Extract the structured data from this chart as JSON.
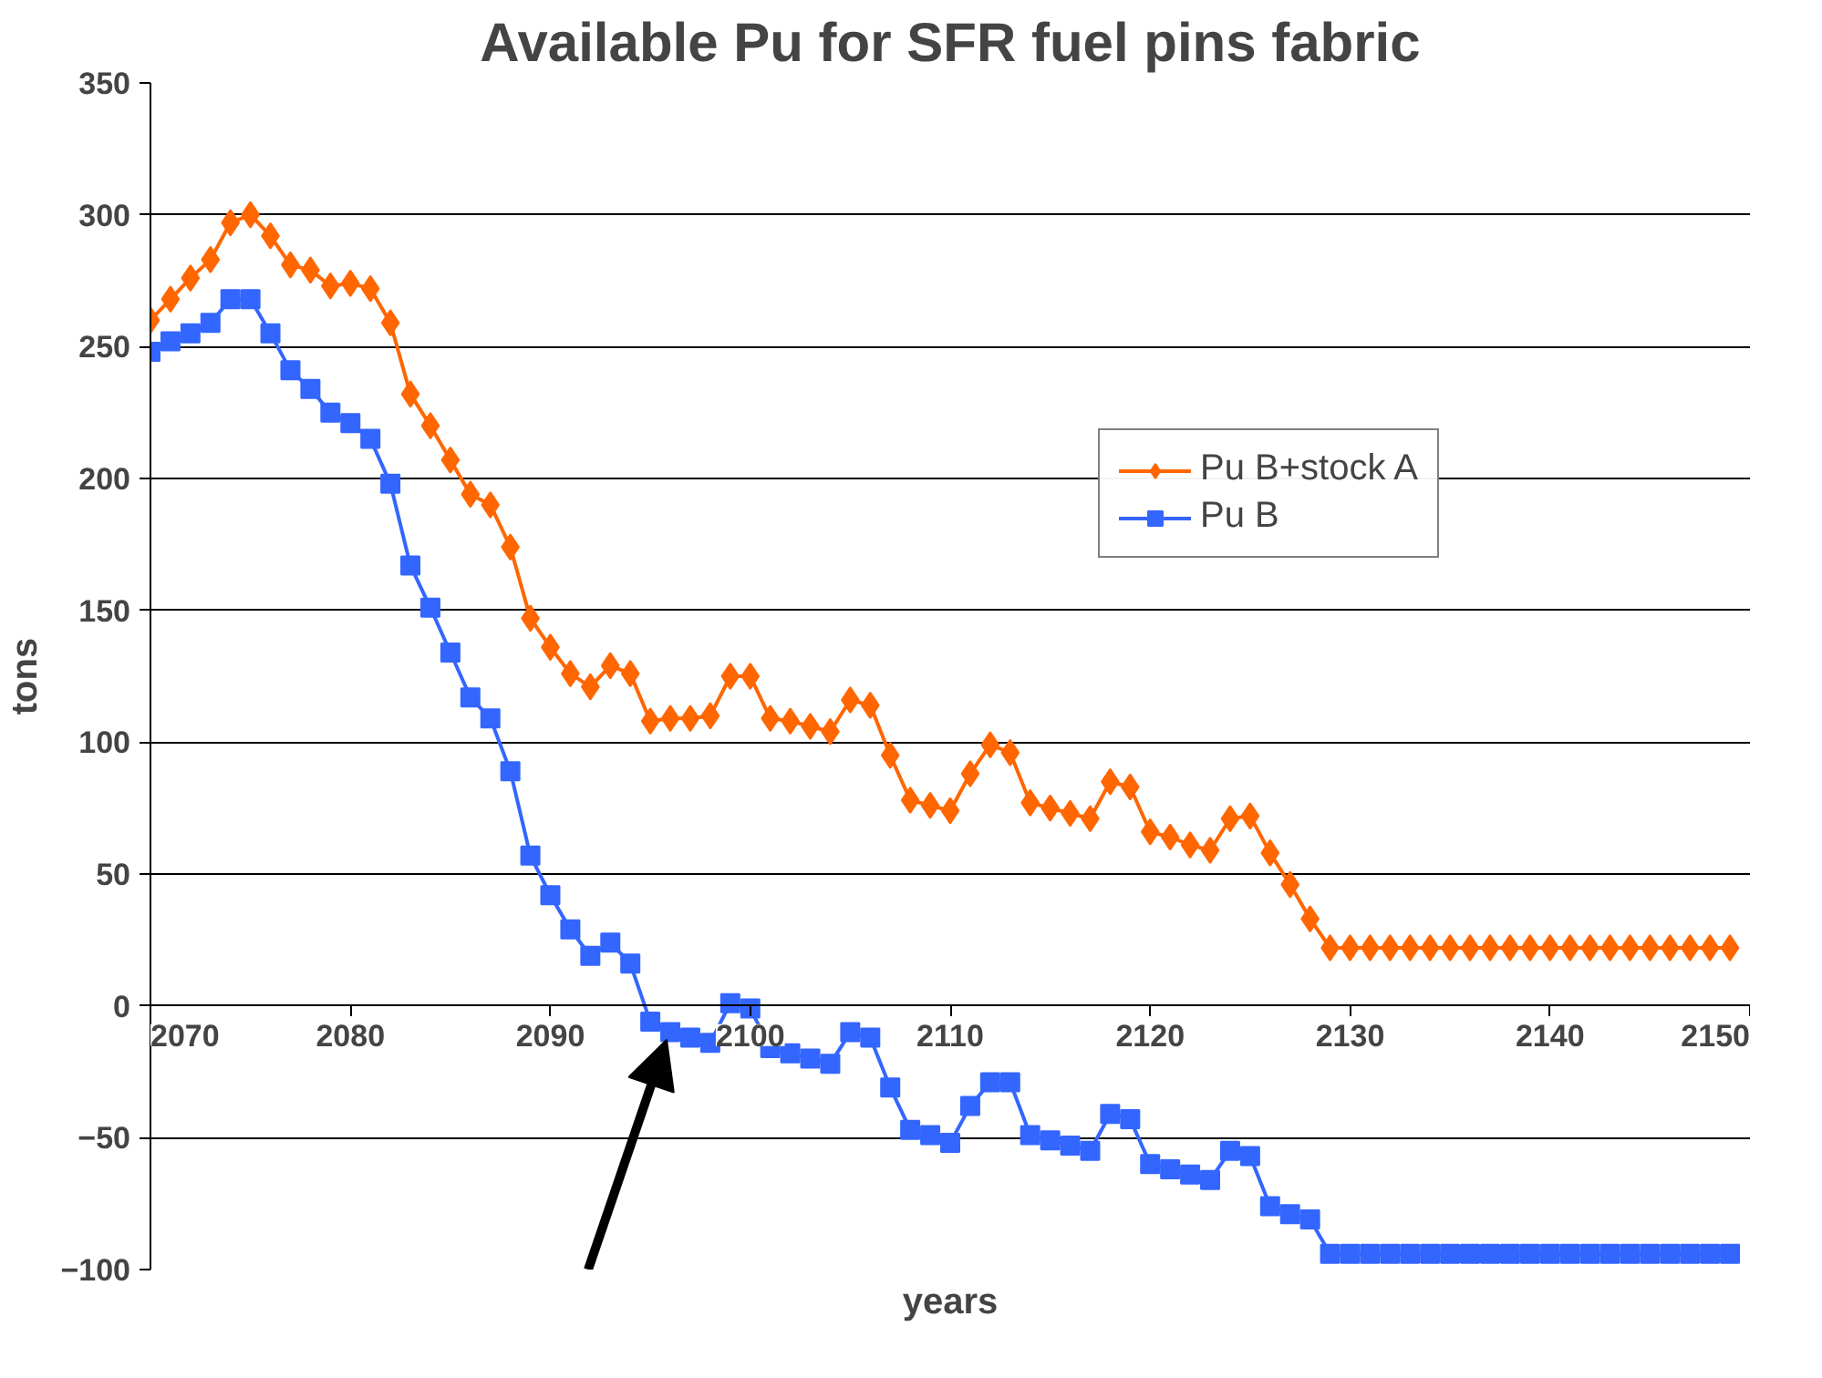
{
  "chart_data": {
    "type": "line",
    "title": "Available Pu for SFR fuel pins fabric",
    "xlabel": "years",
    "ylabel": "tons",
    "x": [
      2070,
      2071,
      2072,
      2073,
      2074,
      2075,
      2076,
      2077,
      2078,
      2079,
      2080,
      2081,
      2082,
      2083,
      2084,
      2085,
      2086,
      2087,
      2088,
      2089,
      2090,
      2091,
      2092,
      2093,
      2094,
      2095,
      2096,
      2097,
      2098,
      2099,
      2100,
      2101,
      2102,
      2103,
      2104,
      2105,
      2106,
      2107,
      2108,
      2109,
      2110,
      2111,
      2112,
      2113,
      2114,
      2115,
      2116,
      2117,
      2118,
      2119,
      2120,
      2121,
      2122,
      2123,
      2124,
      2125,
      2126,
      2127,
      2128,
      2129,
      2130,
      2131,
      2132,
      2133,
      2134,
      2135,
      2136,
      2137,
      2138,
      2139,
      2140,
      2141,
      2142,
      2143,
      2144,
      2145,
      2146,
      2147,
      2148,
      2149
    ],
    "series": [
      {
        "name": "Pu B+stock A",
        "color": "#ff6600",
        "marker": "diamond",
        "values": [
          260,
          268,
          276,
          283,
          297,
          300,
          292,
          281,
          279,
          273,
          274,
          272,
          259,
          232,
          220,
          207,
          194,
          190,
          174,
          147,
          136,
          126,
          121,
          129,
          126,
          108,
          109,
          109,
          110,
          125,
          125,
          109,
          108,
          106,
          104,
          116,
          114,
          95,
          78,
          76,
          74,
          88,
          99,
          96,
          77,
          75,
          73,
          71,
          85,
          83,
          66,
          64,
          61,
          59,
          71,
          72,
          58,
          46,
          33,
          22,
          22,
          22,
          22,
          22,
          22,
          22,
          22,
          22,
          22,
          22,
          22,
          22,
          22,
          22,
          22,
          22,
          22,
          22,
          22,
          22
        ]
      },
      {
        "name": "Pu B",
        "color": "#3366ff",
        "marker": "square",
        "values": [
          248,
          252,
          255,
          259,
          268,
          268,
          255,
          241,
          234,
          225,
          221,
          215,
          198,
          167,
          151,
          134,
          117,
          109,
          89,
          57,
          42,
          29,
          19,
          24,
          16,
          -6,
          -10,
          -12,
          -14,
          1,
          -1,
          -16,
          -18,
          -20,
          -22,
          -10,
          -12,
          -31,
          -47,
          -49,
          -52,
          -38,
          -29,
          -29,
          -49,
          -51,
          -53,
          -55,
          -41,
          -43,
          -60,
          -62,
          -64,
          -66,
          -55,
          -57,
          -76,
          -79,
          -81,
          -94,
          -94,
          -94,
          -94,
          -94,
          -94,
          -94,
          -94,
          -94,
          -94,
          -94,
          -94,
          -94,
          -94,
          -94,
          -94,
          -94,
          -94,
          -94,
          -94,
          -94
        ]
      }
    ],
    "xlim": [
      2070,
      2150
    ],
    "xticks": [
      2070,
      2080,
      2090,
      2100,
      2110,
      2120,
      2130,
      2140,
      2150
    ],
    "ylim": [
      -100,
      350
    ],
    "yticks": [
      -100,
      -50,
      0,
      50,
      100,
      150,
      200,
      250,
      300,
      350
    ],
    "grid": "y",
    "legend": "top right"
  }
}
